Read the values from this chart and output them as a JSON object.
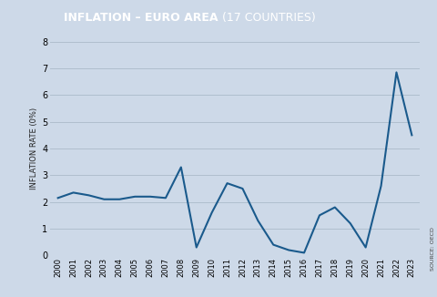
{
  "title_bold": "INFLATION – EURO AREA",
  "title_normal": " (17 COUNTRIES)",
  "ylabel": "INFLATION RATE (0%)",
  "years": [
    2000,
    2001,
    2002,
    2003,
    2004,
    2005,
    2006,
    2007,
    2008,
    2009,
    2010,
    2011,
    2012,
    2013,
    2014,
    2015,
    2016,
    2017,
    2018,
    2019,
    2020,
    2021,
    2022,
    2023
  ],
  "values": [
    2.15,
    2.35,
    2.25,
    2.1,
    2.1,
    2.2,
    2.2,
    2.15,
    3.3,
    0.3,
    1.6,
    2.7,
    2.5,
    1.3,
    0.4,
    0.2,
    0.1,
    1.5,
    1.8,
    1.2,
    0.3,
    2.6,
    6.85,
    4.5
  ],
  "line_color": "#1a5a8c",
  "bg_color": "#cdd9e8",
  "title_bg_color": "#2e7bb5",
  "title_text_color": "#ffffff",
  "grid_color": "#b8c8d8",
  "ylim": [
    0,
    8
  ],
  "yticks": [
    0,
    1,
    2,
    3,
    4,
    5,
    6,
    7,
    8
  ],
  "source_text": "SOURCE: OECD",
  "line_width": 1.5
}
